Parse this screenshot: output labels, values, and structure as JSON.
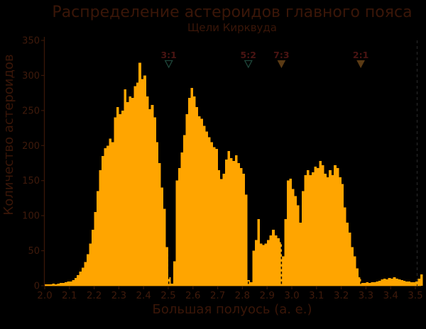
{
  "colors": {
    "background": "#000000",
    "bars": "#FFA500",
    "title_text": "#3a1608",
    "tick_text": "#3f1a0b",
    "axis_line": "#3a1708",
    "baseline": "#FFA500",
    "resonance_label": "#4a1412",
    "hollow_marker_stroke": "#1e463a",
    "filled_marker_fill": "#5a3a14",
    "resonance_dash": "#000000",
    "right_spine_dash": "#2b2b2b"
  },
  "chart_data": {
    "type": "bar",
    "title": "Распределение астероидов главного пояса",
    "subtitle": "Щели Кирквуда",
    "xlabel": "Большая полуось (а. е.)",
    "ylabel": "Количество астероидов",
    "xlim": [
      2.0,
      3.5
    ],
    "ylim": [
      0,
      350
    ],
    "grid": "off",
    "legend": "none",
    "x_ticks": [
      2.0,
      2.1,
      2.2,
      2.3,
      2.4,
      2.5,
      2.6,
      2.7,
      2.8,
      2.9,
      3.0,
      3.1,
      3.2,
      3.3,
      3.4,
      3.5
    ],
    "y_ticks": [
      0,
      50,
      100,
      150,
      200,
      250,
      300,
      350
    ],
    "bin_start": 2.0,
    "bin_width": 0.01,
    "values": [
      2,
      2,
      2,
      3,
      2,
      3,
      4,
      4,
      5,
      6,
      6,
      8,
      11,
      15,
      20,
      26,
      34,
      45,
      60,
      80,
      105,
      135,
      165,
      185,
      196,
      200,
      210,
      205,
      240,
      255,
      245,
      250,
      280,
      262,
      270,
      268,
      285,
      290,
      318,
      295,
      300,
      270,
      252,
      258,
      240,
      205,
      175,
      140,
      110,
      55,
      12,
      3,
      35,
      150,
      168,
      190,
      215,
      245,
      268,
      282,
      270,
      255,
      242,
      238,
      228,
      220,
      212,
      205,
      198,
      195,
      165,
      152,
      160,
      180,
      192,
      182,
      178,
      186,
      175,
      168,
      160,
      130,
      8,
      5,
      50,
      65,
      95,
      60,
      58,
      60,
      65,
      72,
      80,
      72,
      68,
      62,
      42,
      95,
      150,
      153,
      138,
      128,
      115,
      90,
      135,
      158,
      165,
      158,
      162,
      170,
      168,
      178,
      172,
      160,
      155,
      165,
      158,
      172,
      168,
      155,
      145,
      112,
      90,
      76,
      55,
      42,
      25,
      12,
      4,
      4,
      5,
      4,
      5,
      5,
      6,
      7,
      9,
      10,
      9,
      11,
      10,
      12,
      10,
      9,
      8,
      7,
      6,
      6,
      5,
      5,
      6,
      10,
      16
    ],
    "resonances": [
      {
        "label": "3:1",
        "a": 2.502,
        "style": "hollow"
      },
      {
        "label": "5:2",
        "a": 2.824,
        "style": "hollow"
      },
      {
        "label": "7:3",
        "a": 2.958,
        "style": "filled"
      },
      {
        "label": "2:1",
        "a": 3.279,
        "style": "filled"
      }
    ]
  }
}
